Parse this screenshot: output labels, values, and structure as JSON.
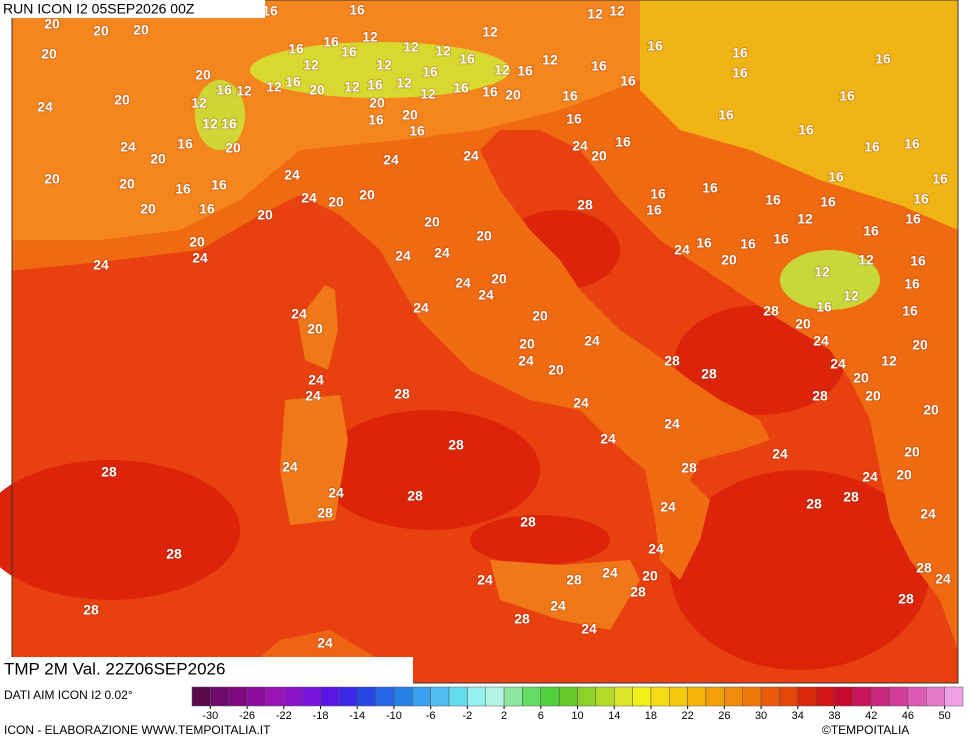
{
  "header": "RUN ICON I2 05SEP2026 00Z",
  "title": "TMP 2M Val. 22Z06SEP2026",
  "source": "DATI AIM ICON I2 0.02°",
  "credit": "ICON - ELABORAZIONE WWW.TEMPOITALIA.IT",
  "copyright": "©TEMPOITALIA",
  "contour_labels": [
    20,
    20,
    20,
    20,
    16,
    16,
    16,
    16,
    12,
    16,
    12,
    12,
    12,
    12,
    12,
    16,
    16,
    16,
    16,
    12,
    12,
    16,
    12,
    16,
    12,
    16,
    16,
    20,
    16,
    12,
    12,
    16,
    20,
    12,
    16,
    12,
    16,
    12,
    16,
    16,
    20,
    16,
    16,
    24,
    20,
    12,
    20,
    20,
    16,
    12,
    16,
    16,
    16,
    16,
    16,
    16,
    24,
    20,
    20,
    24,
    16,
    20,
    16,
    16,
    24,
    24,
    20,
    20,
    16,
    16,
    24,
    16,
    16,
    20,
    16,
    24,
    20,
    20,
    20,
    28,
    16,
    16,
    16,
    16,
    16,
    16,
    12,
    16,
    20,
    20,
    16,
    20,
    24,
    24,
    24,
    24,
    24,
    16,
    16,
    20,
    16,
    12,
    16,
    12,
    24,
    20,
    24,
    16,
    12,
    16,
    24,
    24,
    20,
    20,
    28,
    20,
    24,
    16,
    20,
    20,
    24,
    12,
    28,
    28,
    24,
    20,
    24,
    20,
    24,
    24,
    28,
    28,
    20,
    20,
    24,
    24,
    24,
    28,
    24,
    20,
    28,
    24,
    28,
    24,
    20,
    24,
    28,
    28,
    28,
    28,
    24,
    24,
    28,
    24,
    28,
    28,
    24,
    24,
    28,
    24,
    20,
    28,
    28,
    24,
    28,
    28,
    24,
    24
  ],
  "colorbar": {
    "ticks": [
      -30,
      -26,
      -22,
      -18,
      -14,
      -10,
      -6,
      -2,
      2,
      6,
      10,
      14,
      18,
      22,
      26,
      30,
      34,
      38,
      42,
      46,
      50
    ],
    "range": [
      -32,
      52
    ],
    "colors": [
      "#5a0a4a",
      "#6e0a6e",
      "#800a80",
      "#8c0a9c",
      "#9a14b4",
      "#8c14c8",
      "#7814dc",
      "#5a14e6",
      "#3c28e6",
      "#2846e6",
      "#2864e6",
      "#2882e6",
      "#3ca0f0",
      "#50bef0",
      "#64dcf0",
      "#96f0f0",
      "#b4f5e6",
      "#8ce6a0",
      "#64dc64",
      "#50d23c",
      "#64c828",
      "#8cd228",
      "#b4dc28",
      "#dce628",
      "#f0f014",
      "#f5dc14",
      "#f5c80a",
      "#f5b40a",
      "#f5a00a",
      "#f08c0a",
      "#f0780a",
      "#eb5a0a",
      "#e6460a",
      "#dc280a",
      "#d21414",
      "#c80a32",
      "#c8145a",
      "#c8287d",
      "#d23c9b",
      "#dc5ab4",
      "#e678c8",
      "#f0a0e6"
    ]
  }
}
